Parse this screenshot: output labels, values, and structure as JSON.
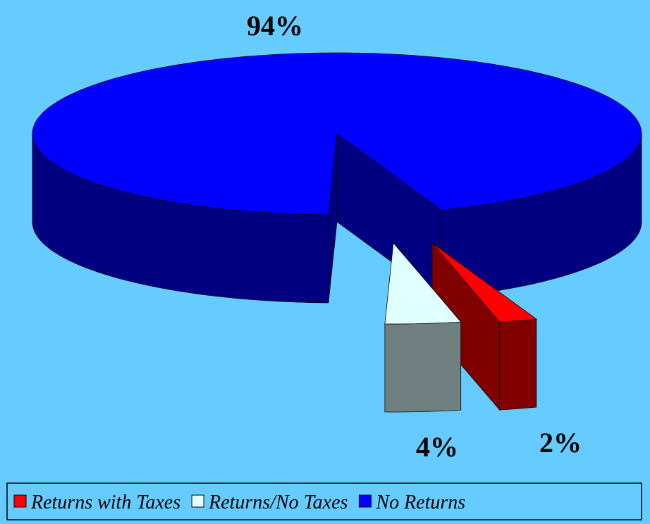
{
  "chart_data": {
    "type": "pie",
    "categories": [
      "Returns with Taxes",
      "Returns/No Taxes",
      "No Returns"
    ],
    "values": [
      2,
      4,
      94
    ],
    "value_labels": [
      "2%",
      "4%",
      "94%"
    ],
    "colors": [
      "#ff0000",
      "#e0ffff",
      "#0000ff"
    ],
    "legend": "bottom"
  }
}
